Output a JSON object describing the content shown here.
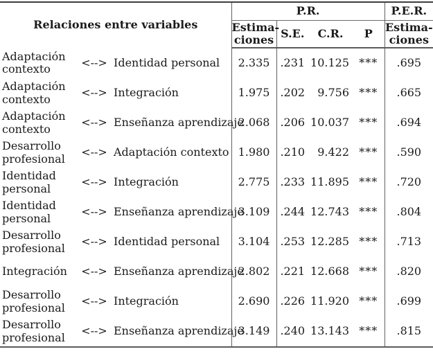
{
  "table": {
    "header": {
      "relaciones": "Relaciones entre variables",
      "pr_group": "P.R.",
      "per_group": "P.E.R.",
      "pr_estimaciones": "Estima-\nciones",
      "se": "S.E.",
      "cr": "C.R.",
      "p": "P",
      "per_estimaciones": "Estima-\nciones"
    },
    "rows": [
      {
        "var1": "Adaptación contexto",
        "arrow": "<-->",
        "var2": "Identidad personal",
        "est": "2.335",
        "se": ".231",
        "cr": "10.125",
        "p": "***",
        "per": ".695"
      },
      {
        "var1": "Adaptación contexto",
        "arrow": "<-->",
        "var2": "Integración",
        "est": "1.975",
        "se": ".202",
        "cr": "9.756",
        "p": "***",
        "per": ".665"
      },
      {
        "var1": "Adaptación contexto",
        "arrow": "<-->",
        "var2": "Enseñanza aprendizaje",
        "est": "2.068",
        "se": ".206",
        "cr": "10.037",
        "p": "***",
        "per": ".694"
      },
      {
        "var1": "Desarrollo profesional",
        "arrow": "<-->",
        "var2": "Adaptación contexto",
        "est": "1.980",
        "se": ".210",
        "cr": "9.422",
        "p": "***",
        "per": ".590"
      },
      {
        "var1": "Identidad personal",
        "arrow": "<-->",
        "var2": "Integración",
        "est": "2.775",
        "se": ".233",
        "cr": "11.895",
        "p": "***",
        "per": ".720"
      },
      {
        "var1": "Identidad personal",
        "arrow": "<-->",
        "var2": "Enseñanza aprendizaje",
        "est": "3.109",
        "se": ".244",
        "cr": "12.743",
        "p": "***",
        "per": ".804"
      },
      {
        "var1": "Desarrollo profesional",
        "arrow": "<-->",
        "var2": "Identidad personal",
        "est": "3.104",
        "se": ".253",
        "cr": "12.285",
        "p": "***",
        "per": ".713"
      },
      {
        "var1": "Integración",
        "arrow": "<-->",
        "var2": "Enseñanza aprendizaje",
        "est": "2.802",
        "se": ".221",
        "cr": "12.668",
        "p": "***",
        "per": ".820"
      },
      {
        "var1": "Desarrollo profesional",
        "arrow": "<-->",
        "var2": "Integración",
        "est": "2.690",
        "se": ".226",
        "cr": "11.920",
        "p": "***",
        "per": ".699"
      },
      {
        "var1": "Desarrollo profesional",
        "arrow": "<-->",
        "var2": "Enseñanza aprendizaje",
        "est": "3.149",
        "se": ".240",
        "cr": "13.143",
        "p": "***",
        "per": ".815"
      }
    ]
  },
  "colors": {
    "text": "#1b1b1b",
    "rule_thick": "#5a5a5a",
    "rule_thin": "#5f5f5f",
    "background": "#ffffff"
  }
}
